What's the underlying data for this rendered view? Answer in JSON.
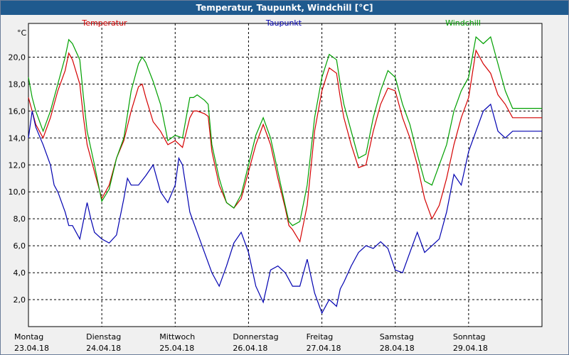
{
  "window": {
    "title": "Temperatur, Taupunkt, Windchill [°C]"
  },
  "colors": {
    "temperature": "#d40000",
    "dewpoint": "#0000b0",
    "windchill": "#00a000",
    "grid": "#000000"
  },
  "chart_data": {
    "type": "line",
    "title": "Temperatur, Taupunkt, Windchill [°C]",
    "unit_label": "°C",
    "xlabel": "",
    "ylabel": "°C",
    "ylim": [
      0,
      22.5
    ],
    "xlim": [
      0,
      7
    ],
    "grid": true,
    "y_ticks": [
      "2,0",
      "4,0",
      "6,0",
      "8,0",
      "10,0",
      "12,0",
      "14,0",
      "16,0",
      "18,0",
      "20,0"
    ],
    "y_tick_values": [
      2,
      4,
      6,
      8,
      10,
      12,
      14,
      16,
      18,
      20
    ],
    "x_ticks": [
      {
        "day": "Montag",
        "date": "23.04.18"
      },
      {
        "day": "Dienstag",
        "date": "24.04.18"
      },
      {
        "day": "Mittwoch",
        "date": "25.04.18"
      },
      {
        "day": "Donnerstag",
        "date": "26.04.18"
      },
      {
        "day": "Freitag",
        "date": "27.04.18"
      },
      {
        "day": "Samstag",
        "date": "28.04.18"
      },
      {
        "day": "Sonntag",
        "date": "29.04.18"
      }
    ],
    "series": [
      {
        "key": "temperature",
        "name": "Temperatur",
        "x": [
          0,
          0.05,
          0.1,
          0.2,
          0.3,
          0.4,
          0.5,
          0.55,
          0.6,
          0.7,
          0.75,
          0.8,
          0.9,
          1.0,
          1.1,
          1.2,
          1.3,
          1.4,
          1.5,
          1.55,
          1.6,
          1.7,
          1.8,
          1.9,
          2.0,
          2.1,
          2.2,
          2.25,
          2.3,
          2.4,
          2.45,
          2.5,
          2.6,
          2.7,
          2.8,
          2.9,
          3.0,
          3.1,
          3.2,
          3.3,
          3.4,
          3.5,
          3.55,
          3.6,
          3.7,
          3.8,
          3.9,
          4.0,
          4.1,
          4.2,
          4.25,
          4.3,
          4.4,
          4.5,
          4.6,
          4.7,
          4.8,
          4.9,
          5.0,
          5.1,
          5.2,
          5.3,
          5.4,
          5.5,
          5.6,
          5.7,
          5.8,
          5.9,
          6.0,
          6.1,
          6.2,
          6.3,
          6.4,
          6.5,
          6.6,
          6.7,
          6.8,
          6.9,
          7.0
        ],
        "values": [
          17.0,
          16.0,
          15.0,
          14.0,
          15.5,
          17.5,
          19.0,
          20.3,
          19.8,
          18.0,
          15.5,
          13.5,
          11.5,
          9.5,
          10.5,
          12.5,
          13.8,
          16.0,
          17.8,
          18.0,
          17.0,
          15.2,
          14.5,
          13.5,
          13.8,
          13.3,
          15.5,
          16.0,
          16.0,
          15.8,
          15.6,
          13.0,
          10.5,
          9.2,
          8.8,
          9.5,
          11.5,
          13.5,
          15.0,
          13.5,
          11.0,
          8.8,
          7.5,
          7.2,
          6.3,
          9.0,
          14.5,
          17.5,
          19.2,
          18.8,
          17.0,
          15.5,
          13.5,
          11.8,
          12.0,
          14.5,
          16.5,
          17.7,
          17.5,
          15.5,
          14.0,
          12.0,
          9.5,
          8.0,
          9.0,
          11.0,
          13.5,
          15.5,
          17.0,
          20.5,
          19.5,
          18.8,
          17.2,
          16.5,
          15.5,
          15.5,
          15.5,
          15.5,
          15.5
        ]
      },
      {
        "key": "dewpoint",
        "name": "Taupunkt",
        "x": [
          0,
          0.05,
          0.1,
          0.2,
          0.3,
          0.35,
          0.4,
          0.5,
          0.55,
          0.6,
          0.7,
          0.8,
          0.85,
          0.9,
          1.0,
          1.1,
          1.2,
          1.3,
          1.35,
          1.4,
          1.5,
          1.6,
          1.7,
          1.8,
          1.9,
          2.0,
          2.05,
          2.1,
          2.2,
          2.3,
          2.4,
          2.5,
          2.6,
          2.7,
          2.8,
          2.9,
          3.0,
          3.1,
          3.2,
          3.3,
          3.4,
          3.5,
          3.55,
          3.6,
          3.7,
          3.8,
          3.9,
          4.0,
          4.1,
          4.2,
          4.25,
          4.3,
          4.4,
          4.5,
          4.6,
          4.7,
          4.8,
          4.9,
          5.0,
          5.1,
          5.2,
          5.3,
          5.4,
          5.5,
          5.6,
          5.7,
          5.8,
          5.9,
          6.0,
          6.1,
          6.2,
          6.3,
          6.4,
          6.5,
          6.6,
          6.7,
          6.8,
          6.9,
          7.0
        ],
        "values": [
          14.0,
          16.0,
          14.8,
          13.5,
          12.0,
          10.5,
          10.0,
          8.5,
          7.5,
          7.5,
          6.5,
          9.2,
          8.0,
          7.0,
          6.5,
          6.2,
          6.8,
          9.5,
          11.0,
          10.5,
          10.5,
          11.2,
          12.0,
          10.0,
          9.2,
          10.5,
          12.5,
          12.0,
          8.5,
          7.0,
          5.5,
          4.0,
          3.0,
          4.5,
          6.2,
          7.0,
          5.5,
          3.0,
          1.8,
          4.2,
          4.5,
          4.0,
          3.5,
          3.0,
          3.0,
          5.0,
          2.5,
          1.0,
          2.0,
          1.5,
          2.8,
          3.3,
          4.5,
          5.5,
          6.0,
          5.8,
          6.3,
          5.8,
          4.2,
          4.0,
          5.5,
          7.0,
          5.5,
          6.0,
          6.5,
          8.5,
          11.3,
          10.5,
          13.0,
          14.5,
          16.0,
          16.5,
          14.5,
          14.0,
          14.5,
          14.5,
          14.5,
          14.5,
          14.5
        ]
      },
      {
        "key": "windchill",
        "name": "Windchill",
        "x": [
          0,
          0.05,
          0.1,
          0.2,
          0.3,
          0.4,
          0.5,
          0.55,
          0.6,
          0.7,
          0.75,
          0.8,
          0.9,
          1.0,
          1.1,
          1.2,
          1.3,
          1.4,
          1.5,
          1.55,
          1.6,
          1.7,
          1.8,
          1.9,
          2.0,
          2.1,
          2.2,
          2.25,
          2.3,
          2.4,
          2.45,
          2.5,
          2.6,
          2.7,
          2.8,
          2.9,
          3.0,
          3.1,
          3.2,
          3.3,
          3.4,
          3.5,
          3.55,
          3.6,
          3.7,
          3.8,
          3.9,
          4.0,
          4.1,
          4.2,
          4.25,
          4.3,
          4.4,
          4.5,
          4.6,
          4.7,
          4.8,
          4.9,
          5.0,
          5.1,
          5.2,
          5.3,
          5.4,
          5.5,
          5.6,
          5.7,
          5.8,
          5.9,
          6.0,
          6.1,
          6.2,
          6.3,
          6.4,
          6.5,
          6.6,
          6.7,
          6.8,
          6.9,
          7.0
        ],
        "values": [
          18.5,
          17.0,
          16.0,
          14.5,
          16.0,
          18.0,
          20.0,
          21.3,
          21.0,
          19.8,
          17.0,
          14.5,
          12.0,
          9.3,
          10.2,
          12.5,
          14.0,
          17.5,
          19.5,
          20.0,
          19.6,
          18.2,
          16.5,
          13.8,
          14.2,
          14.0,
          17.0,
          17.0,
          17.2,
          16.8,
          16.5,
          13.5,
          11.0,
          9.2,
          8.8,
          9.8,
          12.0,
          14.2,
          15.5,
          14.0,
          11.5,
          9.0,
          7.8,
          7.5,
          7.8,
          10.5,
          15.5,
          18.5,
          20.2,
          19.8,
          18.0,
          16.5,
          14.5,
          12.5,
          12.8,
          15.5,
          17.5,
          19.0,
          18.5,
          16.5,
          15.0,
          12.8,
          10.8,
          10.5,
          12.0,
          13.5,
          16.0,
          17.5,
          18.5,
          21.5,
          21.0,
          21.5,
          19.5,
          17.5,
          16.2,
          16.2,
          16.2,
          16.2,
          16.2
        ]
      }
    ]
  }
}
